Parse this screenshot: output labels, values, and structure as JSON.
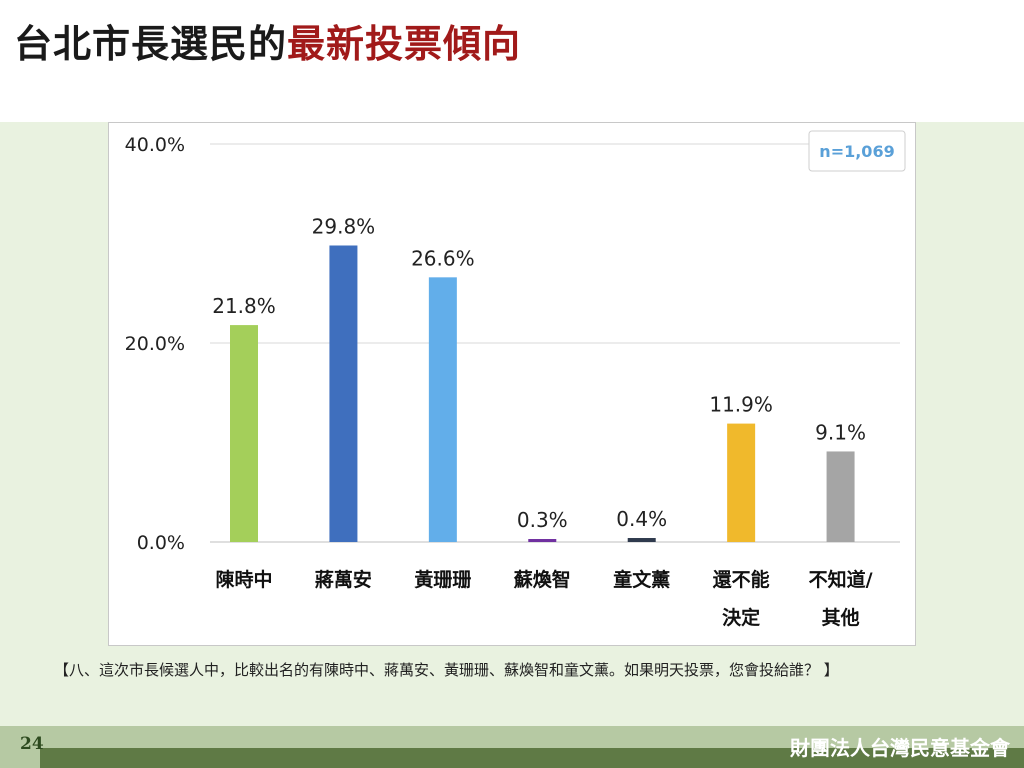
{
  "slide": {
    "title_black": "台北市長選民的",
    "title_red": "最新投票傾向",
    "note": "【八、這次市長候選人中，比較出名的有陳時中、蔣萬安、黃珊珊、蘇煥智和童文薰。如果明天投票，您會投給誰？ 】",
    "page_number": "24",
    "organization": "財團法人台灣民意基金會"
  },
  "chart_data": {
    "type": "bar",
    "title": "",
    "xlabel": "",
    "ylabel": "",
    "ylim": [
      0,
      40
    ],
    "yticks": [
      "0.0%",
      "20.0%",
      "40.0%"
    ],
    "ytick_values": [
      0,
      20,
      40
    ],
    "grid": true,
    "legend": "none",
    "annotation": "n=1,069",
    "categories": [
      [
        "陳時中"
      ],
      [
        "蔣萬安"
      ],
      [
        "黃珊珊"
      ],
      [
        "蘇煥智"
      ],
      [
        "童文薰"
      ],
      [
        "還不能",
        "決定"
      ],
      [
        "不知道/",
        "其他"
      ]
    ],
    "values": [
      21.8,
      29.8,
      26.6,
      0.3,
      0.4,
      11.9,
      9.1
    ],
    "labels": [
      "21.8%",
      "29.8%",
      "26.6%",
      "0.3%",
      "0.4%",
      "11.9%",
      "9.1%"
    ],
    "colors": [
      "#a4cf5a",
      "#3f6fbe",
      "#62aeea",
      "#7030a0",
      "#2f3a4d",
      "#f0b92c",
      "#a5a5a5"
    ]
  }
}
